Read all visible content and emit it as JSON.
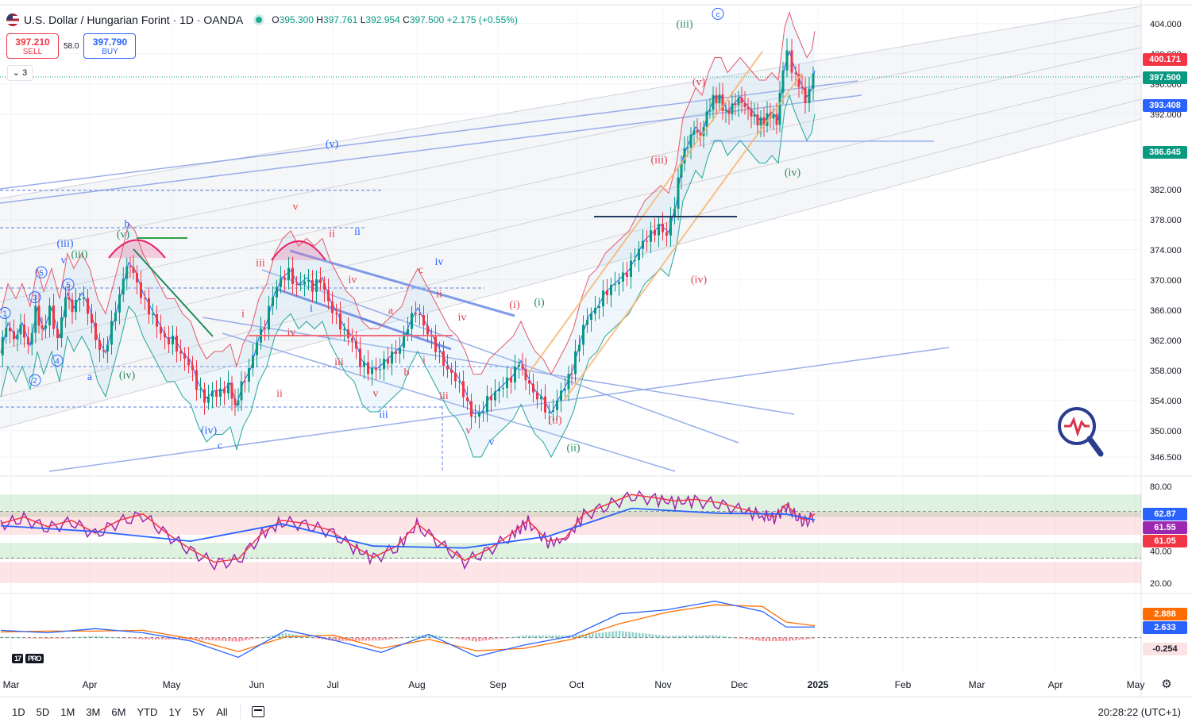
{
  "header": {
    "title": "U.S. Dollar / Hungarian Forint · 1D · OANDA",
    "open_label": "O",
    "open": "395.300",
    "high_label": "H",
    "high": "397.761",
    "low_label": "L",
    "low": "392.954",
    "close_label": "C",
    "close": "397.500",
    "change": "+2.175 (+0.55%)"
  },
  "trade": {
    "sell_price": "397.210",
    "sell_label": "SELL",
    "spread": "58.0",
    "buy_price": "397.790",
    "buy_label": "BUY"
  },
  "indicator_toggle": "3",
  "price_badges": {
    "high_line": "400.171",
    "last": "397.500",
    "ma": "393.408",
    "low_line": "386.645"
  },
  "rsi_badges": {
    "a": "62.87",
    "b": "61.55",
    "c": "61.05"
  },
  "macd_badges": {
    "a": "2.888",
    "b": "2.633",
    "c": "-0.254"
  },
  "colors": {
    "up": "#089981",
    "down": "#f23645",
    "accent": "#2962ff",
    "rsi": "#9c27b0"
  },
  "chart_data": {
    "type": "candlestick",
    "title": "U.S. Dollar / Hungarian Forint · 1D · OANDA",
    "x_ticks": [
      "Mar",
      "Apr",
      "May",
      "Jun",
      "Jul",
      "Aug",
      "Sep",
      "Oct",
      "Nov",
      "Dec",
      "2025",
      "Feb",
      "Mar",
      "Apr",
      "May"
    ],
    "y_ticks": [
      "404.000",
      "400.000",
      "396.000",
      "392.000",
      "382.000",
      "378.000",
      "374.000",
      "370.000",
      "366.000",
      "362.000",
      "358.000",
      "354.000",
      "350.000",
      "346.500"
    ],
    "y_tick_values": [
      404,
      400,
      396,
      392,
      382,
      378,
      374,
      370,
      366,
      362,
      358,
      354,
      350,
      346.5
    ],
    "ylim": [
      344.5,
      406.5
    ],
    "close_path": [
      [
        1,
        360
      ],
      [
        10,
        364
      ],
      [
        20,
        362
      ],
      [
        28,
        364
      ],
      [
        38,
        361
      ],
      [
        47,
        366
      ],
      [
        55,
        363
      ],
      [
        65,
        366
      ],
      [
        75,
        362
      ],
      [
        85,
        368
      ],
      [
        93,
        366
      ],
      [
        103,
        368
      ],
      [
        113,
        366
      ],
      [
        123,
        362
      ],
      [
        133,
        360
      ],
      [
        143,
        364
      ],
      [
        153,
        368
      ],
      [
        162,
        372
      ],
      [
        170,
        371
      ],
      [
        180,
        368
      ],
      [
        190,
        366
      ],
      [
        200,
        364
      ],
      [
        210,
        362
      ],
      [
        220,
        362
      ],
      [
        230,
        360
      ],
      [
        240,
        359
      ],
      [
        250,
        356
      ],
      [
        260,
        354
      ],
      [
        270,
        355
      ],
      [
        280,
        355
      ],
      [
        290,
        356
      ],
      [
        298,
        353
      ],
      [
        306,
        356
      ],
      [
        316,
        358
      ],
      [
        326,
        362
      ],
      [
        336,
        364
      ],
      [
        346,
        368
      ],
      [
        356,
        370
      ],
      [
        366,
        371
      ],
      [
        376,
        369
      ],
      [
        386,
        370
      ],
      [
        396,
        369
      ],
      [
        406,
        370
      ],
      [
        416,
        367
      ],
      [
        426,
        365
      ],
      [
        436,
        363
      ],
      [
        446,
        362
      ],
      [
        456,
        359
      ],
      [
        466,
        358
      ],
      [
        476,
        358
      ],
      [
        486,
        359
      ],
      [
        496,
        360
      ],
      [
        506,
        361
      ],
      [
        516,
        364
      ],
      [
        526,
        366
      ],
      [
        536,
        364
      ],
      [
        546,
        362
      ],
      [
        556,
        360
      ],
      [
        566,
        358
      ],
      [
        576,
        357
      ],
      [
        586,
        355
      ],
      [
        596,
        352
      ],
      [
        606,
        352
      ],
      [
        616,
        354
      ],
      [
        626,
        355
      ],
      [
        636,
        356
      ],
      [
        646,
        357
      ],
      [
        656,
        359
      ],
      [
        664,
        357
      ],
      [
        674,
        355
      ],
      [
        684,
        354
      ],
      [
        694,
        352
      ],
      [
        704,
        354
      ],
      [
        714,
        356
      ],
      [
        722,
        358
      ],
      [
        732,
        362
      ],
      [
        742,
        365
      ],
      [
        752,
        366
      ],
      [
        762,
        368
      ],
      [
        772,
        369
      ],
      [
        782,
        370
      ],
      [
        792,
        371
      ],
      [
        802,
        373
      ],
      [
        812,
        375
      ],
      [
        822,
        376
      ],
      [
        832,
        377
      ],
      [
        842,
        376
      ],
      [
        852,
        380
      ],
      [
        860,
        386
      ],
      [
        868,
        388
      ],
      [
        876,
        390
      ],
      [
        884,
        389
      ],
      [
        892,
        392
      ],
      [
        900,
        394
      ],
      [
        908,
        394
      ],
      [
        916,
        392
      ],
      [
        924,
        393
      ],
      [
        932,
        394
      ],
      [
        940,
        393
      ],
      [
        948,
        392
      ],
      [
        956,
        391
      ],
      [
        964,
        391
      ],
      [
        972,
        392
      ],
      [
        980,
        391
      ],
      [
        988,
        398
      ],
      [
        994,
        400
      ],
      [
        1000,
        398
      ],
      [
        1008,
        396
      ],
      [
        1016,
        394
      ],
      [
        1022,
        395
      ],
      [
        1026,
        397.5
      ]
    ],
    "elliott_labels": [
      {
        "t": "(iii)",
        "x": 862,
        "y": 403.5,
        "c": "g"
      },
      {
        "t": "(v)",
        "x": 880,
        "y": 395.8,
        "c": "r"
      },
      {
        "t": "(iii)",
        "x": 830,
        "y": 385.5,
        "c": "r"
      },
      {
        "t": "(iv)",
        "x": 998,
        "y": 383.8,
        "c": "g"
      },
      {
        "t": "(iv)",
        "x": 880,
        "y": 369.6,
        "c": "r"
      },
      {
        "t": "(i)",
        "x": 648,
        "y": 366.3,
        "c": "r"
      },
      {
        "t": "(i)",
        "x": 679,
        "y": 366.6,
        "c": "g"
      },
      {
        "t": "(ii)",
        "x": 699,
        "y": 351.0,
        "c": "r"
      },
      {
        "t": "(ii)",
        "x": 722,
        "y": 347.3,
        "c": "g"
      },
      {
        "t": "(v)",
        "x": 418,
        "y": 387.6,
        "c": "b"
      },
      {
        "t": "b",
        "x": 160,
        "y": 377.0,
        "c": "b"
      },
      {
        "t": "(v)",
        "x": 155,
        "y": 375.6,
        "c": "g"
      },
      {
        "t": "(iii)",
        "x": 82,
        "y": 374.4,
        "c": "b"
      },
      {
        "t": "(iii)",
        "x": 100,
        "y": 373.0,
        "c": "g"
      },
      {
        "t": "v",
        "x": 80,
        "y": 372.2,
        "c": "b"
      },
      {
        "t": "(iv)",
        "x": 160,
        "y": 356.9,
        "c": "g"
      },
      {
        "t": "a",
        "x": 113,
        "y": 356.7,
        "c": "b"
      },
      {
        "t": "(iv)",
        "x": 263,
        "y": 349.6,
        "c": "b"
      },
      {
        "t": "c",
        "x": 277,
        "y": 347.6,
        "c": "b"
      },
      {
        "t": "v",
        "x": 372,
        "y": 379.3,
        "c": "r"
      },
      {
        "t": "ii",
        "x": 418,
        "y": 375.7,
        "c": "r"
      },
      {
        "t": "ii",
        "x": 450,
        "y": 376.0,
        "c": "b"
      },
      {
        "t": "iii",
        "x": 328,
        "y": 371.8,
        "c": "r"
      },
      {
        "t": "iv",
        "x": 444,
        "y": 369.6,
        "c": "r"
      },
      {
        "t": "iv",
        "x": 553,
        "y": 372.0,
        "c": "b"
      },
      {
        "t": "c",
        "x": 530,
        "y": 370.9,
        "c": "r"
      },
      {
        "t": "ii",
        "x": 553,
        "y": 367.7,
        "c": "r"
      },
      {
        "t": "a",
        "x": 492,
        "y": 365.5,
        "c": "r"
      },
      {
        "t": "i",
        "x": 392,
        "y": 365.8,
        "c": "b"
      },
      {
        "t": "i",
        "x": 306,
        "y": 365.1,
        "c": "r"
      },
      {
        "t": "iv",
        "x": 582,
        "y": 364.6,
        "c": "r"
      },
      {
        "t": "iv",
        "x": 367,
        "y": 362.6,
        "c": "r"
      },
      {
        "t": "iii",
        "x": 427,
        "y": 358.7,
        "c": "r"
      },
      {
        "t": "i",
        "x": 534,
        "y": 359.0,
        "c": "r"
      },
      {
        "t": "b",
        "x": 512,
        "y": 357.3,
        "c": "r"
      },
      {
        "t": "ii",
        "x": 352,
        "y": 354.5,
        "c": "r"
      },
      {
        "t": "v",
        "x": 473,
        "y": 354.5,
        "c": "r"
      },
      {
        "t": "iii",
        "x": 559,
        "y": 354.2,
        "c": "r"
      },
      {
        "t": "iii",
        "x": 483,
        "y": 351.7,
        "c": "b"
      },
      {
        "t": "v",
        "x": 590,
        "y": 349.6,
        "c": "r"
      },
      {
        "t": "v",
        "x": 619,
        "y": 348.1,
        "c": "b"
      }
    ],
    "circled_labels": [
      {
        "t": "c",
        "x": 904,
        "y": 405.3
      },
      {
        "t": "5",
        "x": 52,
        "y": 371.0
      },
      {
        "t": "5",
        "x": 86,
        "y": 369.4
      },
      {
        "t": "3",
        "x": 44,
        "y": 367.7
      },
      {
        "t": "1",
        "x": 6,
        "y": 365.6
      },
      {
        "t": "4",
        "x": 72,
        "y": 359.3
      },
      {
        "t": "2",
        "x": 44,
        "y": 356.7
      }
    ],
    "rsi": {
      "ylim": [
        15,
        85
      ],
      "y_ticks": [
        80,
        40,
        20
      ],
      "y_tick_labels": [
        "80.00",
        "40.00",
        "20.00"
      ],
      "upper_band": [
        75,
        61
      ],
      "lower_band": [
        45,
        35
      ],
      "dashed_levels": [
        64.5,
        35.5
      ],
      "path": [
        [
          1,
          56
        ],
        [
          30,
          60
        ],
        [
          60,
          54
        ],
        [
          90,
          58
        ],
        [
          120,
          50
        ],
        [
          150,
          58
        ],
        [
          180,
          62
        ],
        [
          210,
          50
        ],
        [
          240,
          40
        ],
        [
          270,
          32
        ],
        [
          300,
          34
        ],
        [
          330,
          50
        ],
        [
          355,
          58
        ],
        [
          385,
          56
        ],
        [
          415,
          52
        ],
        [
          445,
          42
        ],
        [
          470,
          35
        ],
        [
          500,
          42
        ],
        [
          525,
          56
        ],
        [
          555,
          44
        ],
        [
          585,
          33
        ],
        [
          615,
          40
        ],
        [
          645,
          50
        ],
        [
          665,
          58
        ],
        [
          690,
          45
        ],
        [
          712,
          47
        ],
        [
          735,
          62
        ],
        [
          765,
          68
        ],
        [
          795,
          74
        ],
        [
          825,
          72
        ],
        [
          850,
          70
        ],
        [
          875,
          71
        ],
        [
          905,
          69
        ],
        [
          935,
          65
        ],
        [
          960,
          62
        ],
        [
          975,
          60
        ],
        [
          990,
          68
        ],
        [
          1005,
          60
        ],
        [
          1015,
          58
        ],
        [
          1026,
          62
        ]
      ]
    },
    "macd": {
      "ylim": [
        -8,
        10
      ],
      "zero_label": "-0.254",
      "line": [
        [
          1,
          1.8
        ],
        [
          60,
          1.2
        ],
        [
          120,
          2.2
        ],
        [
          180,
          1.2
        ],
        [
          240,
          -0.8
        ],
        [
          300,
          -4.8
        ],
        [
          360,
          1.8
        ],
        [
          420,
          -0.6
        ],
        [
          480,
          -3.6
        ],
        [
          540,
          0.8
        ],
        [
          600,
          -4.6
        ],
        [
          660,
          -1.8
        ],
        [
          720,
          0.4
        ],
        [
          780,
          5.8
        ],
        [
          840,
          6.8
        ],
        [
          900,
          8.9
        ],
        [
          960,
          6.4
        ],
        [
          990,
          2.6
        ],
        [
          1026,
          2.6
        ]
      ],
      "signal": [
        [
          1,
          1.4
        ],
        [
          60,
          1.6
        ],
        [
          120,
          1.6
        ],
        [
          180,
          1.8
        ],
        [
          240,
          -0.2
        ],
        [
          300,
          -3.4
        ],
        [
          360,
          0.2
        ],
        [
          420,
          0.6
        ],
        [
          480,
          -2.6
        ],
        [
          540,
          -0.4
        ],
        [
          600,
          -3.2
        ],
        [
          660,
          -2.6
        ],
        [
          720,
          -0.4
        ],
        [
          780,
          3.4
        ],
        [
          840,
          6.2
        ],
        [
          900,
          8.0
        ],
        [
          960,
          7.6
        ],
        [
          990,
          3.8
        ],
        [
          1026,
          2.9
        ]
      ]
    }
  },
  "bottom_bar": {
    "timeframes": [
      "1D",
      "5D",
      "1M",
      "3M",
      "6M",
      "YTD",
      "1Y",
      "5Y",
      "All"
    ],
    "clock": "20:28:22 (UTC+1)"
  },
  "brand": {
    "logo": "17",
    "pro": "PRO"
  }
}
